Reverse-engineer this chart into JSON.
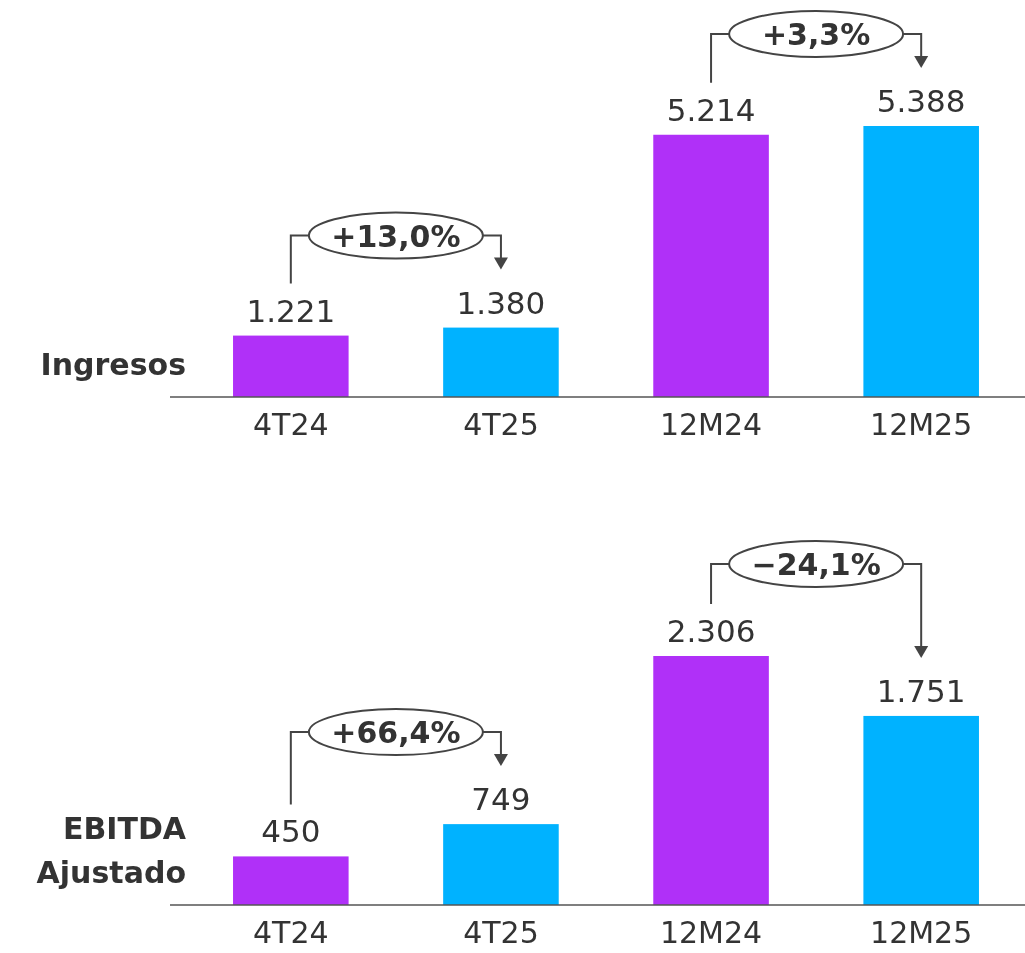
{
  "chart_data": [
    {
      "type": "bar",
      "title": "Ingresos",
      "categories": [
        "4T24",
        "4T25",
        "12M24",
        "12M25"
      ],
      "values": [
        1221,
        1380,
        5214,
        5388
      ],
      "value_labels": [
        "1.221",
        "1.380",
        "5.214",
        "5.388"
      ],
      "colors": [
        "#b030f8",
        "#00b2ff",
        "#b030f8",
        "#00b2ff"
      ],
      "annotations": [
        "+13,0%",
        "+3,3%"
      ]
    },
    {
      "type": "bar",
      "title": "EBITDA Ajustado",
      "categories": [
        "4T24",
        "4T25",
        "12M24",
        "12M25"
      ],
      "values": [
        450,
        749,
        2306,
        1751
      ],
      "value_labels": [
        "450",
        "749",
        "2.306",
        "1.751"
      ],
      "colors": [
        "#b030f8",
        "#00b2ff",
        "#b030f8",
        "#00b2ff"
      ],
      "annotations": [
        "+66,4%",
        "−24,1%"
      ]
    }
  ]
}
